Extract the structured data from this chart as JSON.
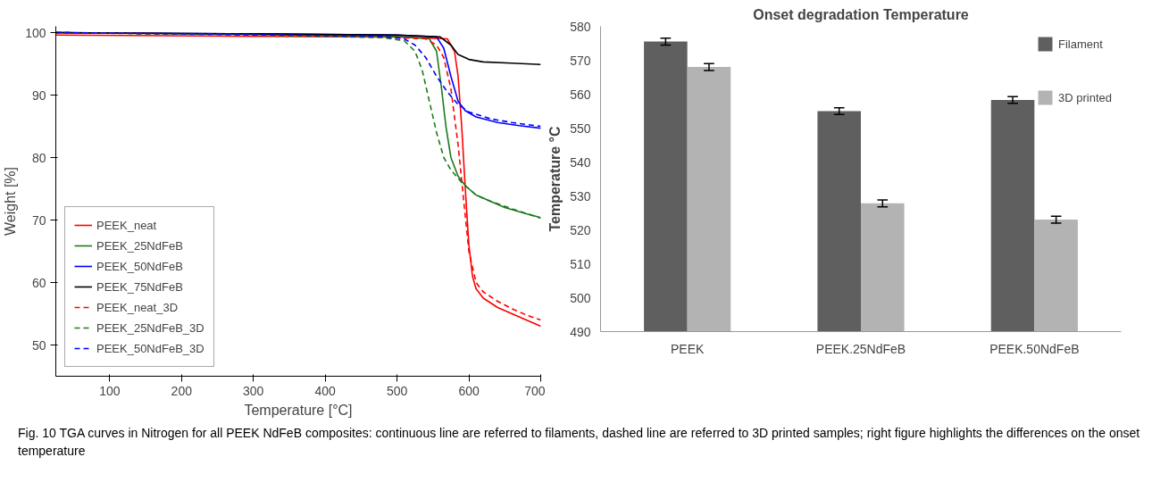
{
  "chart_data": [
    {
      "type": "line",
      "xlabel": "Temperature [°C]",
      "ylabel": "Weight [%]",
      "xlim": [
        25,
        700
      ],
      "ylim": [
        45,
        101
      ],
      "xticks": [
        100,
        200,
        300,
        400,
        500,
        600,
        700
      ],
      "yticks": [
        50,
        60,
        70,
        80,
        90,
        100
      ],
      "grid": false,
      "legend": "bottom left",
      "marker": "none",
      "series": [
        {
          "name": "PEEK_neat",
          "color": "#ff0000",
          "line_style": "solid",
          "x": [
            25,
            300,
            500,
            570,
            580,
            585,
            590,
            595,
            600,
            605,
            610,
            620,
            640,
            660,
            680,
            700
          ],
          "values": [
            99.6,
            99.4,
            99.3,
            99,
            97,
            93,
            85,
            75,
            66,
            61,
            59,
            57.5,
            56,
            55,
            54,
            53
          ]
        },
        {
          "name": "PEEK_25NdFeB",
          "color": "#1a7a1a",
          "line_style": "solid",
          "x": [
            25,
            300,
            500,
            545,
            555,
            562,
            568,
            575,
            585,
            595,
            610,
            630,
            650,
            680,
            700
          ],
          "values": [
            100,
            99.7,
            99.4,
            99,
            97,
            91,
            85,
            80,
            77,
            75.5,
            74,
            73,
            72,
            71,
            70.4
          ]
        },
        {
          "name": "PEEK_50NdFeB",
          "color": "#0000ff",
          "line_style": "solid",
          "x": [
            25,
            300,
            500,
            555,
            565,
            575,
            585,
            595,
            610,
            640,
            670,
            700
          ],
          "values": [
            100,
            99.8,
            99.6,
            99.3,
            97.5,
            93,
            89,
            87.5,
            86.5,
            85.6,
            85.1,
            84.7
          ]
        },
        {
          "name": "PEEK_75NdFeB",
          "color": "#000000",
          "line_style": "solid",
          "x": [
            25,
            300,
            500,
            560,
            575,
            585,
            600,
            620,
            660,
            700
          ],
          "values": [
            100,
            99.8,
            99.6,
            99.3,
            98,
            96.5,
            95.7,
            95.3,
            95.1,
            94.9
          ]
        },
        {
          "name": "PEEK_neat_3D",
          "color": "#ff0000",
          "line_style": "dashed",
          "x": [
            25,
            300,
            500,
            540,
            555,
            565,
            575,
            585,
            592,
            600,
            610,
            620,
            640,
            660,
            680,
            700
          ],
          "values": [
            100,
            99.7,
            99.2,
            99,
            98,
            96,
            91,
            82,
            74,
            65,
            60,
            58.5,
            57,
            55.8,
            54.8,
            54
          ]
        },
        {
          "name": "PEEK_25NdFeB_3D",
          "color": "#1a7a1a",
          "line_style": "dashed",
          "x": [
            25,
            300,
            480,
            510,
            525,
            535,
            545,
            555,
            565,
            575,
            590,
            610,
            630,
            660,
            700
          ],
          "values": [
            100,
            99.6,
            99.2,
            98.7,
            97,
            94,
            89,
            84,
            80,
            78,
            76,
            74,
            73,
            71.8,
            70.3
          ]
        },
        {
          "name": "PEEK_50NdFeB_3D",
          "color": "#0000ff",
          "line_style": "dashed",
          "x": [
            25,
            300,
            480,
            510,
            525,
            540,
            555,
            570,
            585,
            600,
            630,
            660,
            700
          ],
          "values": [
            100,
            99.7,
            99.4,
            99,
            98,
            96,
            93,
            90.5,
            88.5,
            87.3,
            86.2,
            85.6,
            85
          ]
        }
      ]
    },
    {
      "type": "bar",
      "title": "Onset degradation Temperature",
      "ylabel": "Temperature °C",
      "categories": [
        "PEEK",
        "PEEK.25NdFeB",
        "PEEK.50NdFeB"
      ],
      "ylim": [
        490,
        580
      ],
      "yticks": [
        490,
        500,
        510,
        520,
        530,
        540,
        550,
        560,
        570,
        580
      ],
      "grid": false,
      "legend": "top right",
      "series": [
        {
          "name": "Filament",
          "color": "#5f5f5f",
          "values": [
            575.5,
            555,
            558.3
          ],
          "errors": [
            1,
            1,
            1
          ]
        },
        {
          "name": "3D printed",
          "color": "#b3b3b3",
          "values": [
            568,
            527.8,
            523
          ],
          "errors": [
            1,
            1,
            1
          ]
        }
      ],
      "annotations": [
        "Fig. 10 TGA curves in Nitrogen for all PEEK NdFeB composites: continuous line are referred to filaments, dashed line are referred to 3D printed samples; right figure highlights the differences on the onset temperature"
      ]
    }
  ]
}
